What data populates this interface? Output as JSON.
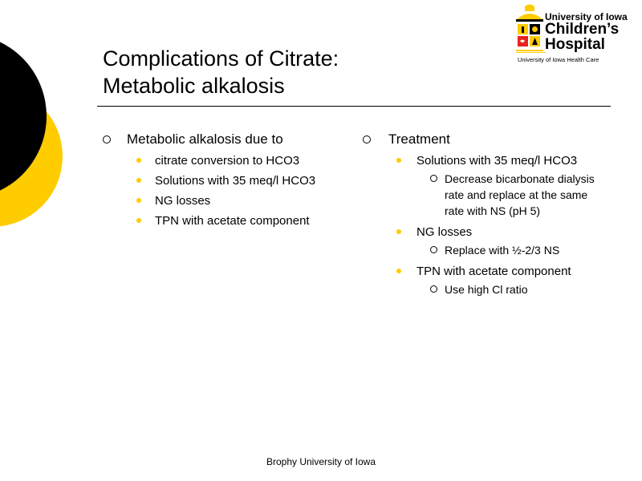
{
  "slide": {
    "title_line1": "Complications of Citrate:",
    "title_line2": "Metabolic alkalosis",
    "left": {
      "heading": "Metabolic alkalosis due to",
      "items": [
        "citrate conversion to HCO3",
        "Solutions with 35 meq/l HCO3",
        "NG losses",
        "TPN with acetate component"
      ]
    },
    "right": {
      "heading": "Treatment",
      "groups": [
        {
          "label": "Solutions with 35 meq/l HCO3",
          "subitems": [
            "Decrease bicarbonate dialysis rate and replace at the same rate with NS (pH 5)"
          ]
        },
        {
          "label": "NG losses",
          "subitems": [
            "Replace with ½-2/3 NS"
          ]
        },
        {
          "label": "TPN with acetate component",
          "subitems": [
            "Use high Cl ratio"
          ]
        }
      ]
    },
    "footer": "Brophy University of Iowa"
  },
  "logo": {
    "line1": "University of Iowa",
    "line2": "Children’s",
    "line3": "Hospital",
    "line4": "University of Iowa Health Care"
  },
  "colors": {
    "accent": "#FFCC00",
    "dark": "#000000",
    "background": "#FFFFFF"
  }
}
